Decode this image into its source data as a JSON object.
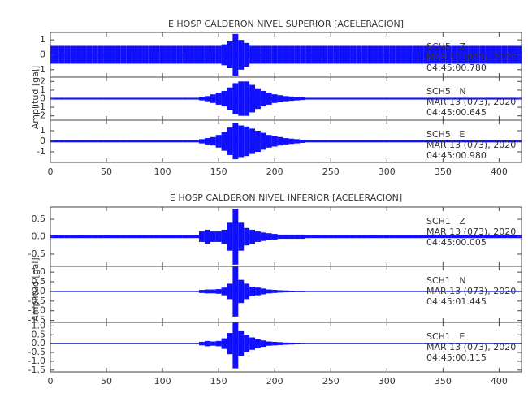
{
  "chart_data": [
    {
      "type": "seismogram",
      "title": "E HOSP CALDERON NIVEL SUPERIOR [ACELERACION]",
      "ylabel": "Amplitud [gal]",
      "color": "#1010ff",
      "xlim": [
        0,
        420
      ],
      "xticks": [
        0,
        50,
        100,
        150,
        200,
        250,
        300,
        350,
        400
      ],
      "x": [
        0,
        5,
        10,
        15,
        20,
        25,
        30,
        35,
        40,
        45,
        50,
        55,
        60,
        65,
        70,
        75,
        80,
        85,
        90,
        95,
        100,
        105,
        110,
        115,
        120,
        125,
        130,
        135,
        140,
        145,
        150,
        155,
        160,
        165,
        170,
        175,
        180,
        185,
        190,
        195,
        200,
        205,
        210,
        215,
        220,
        225,
        230,
        235,
        240,
        245,
        250,
        255,
        260,
        265,
        270,
        275,
        280,
        285,
        290,
        295,
        300,
        305,
        310,
        315,
        320,
        325,
        330,
        335,
        340,
        345,
        350,
        355,
        360,
        365,
        370,
        375,
        380,
        385,
        390,
        395,
        400,
        405,
        410,
        415,
        420
      ],
      "traces": [
        {
          "station": "SCH5   Z",
          "date": "MAR 13 (073), 2020",
          "time": "04:45:00.780",
          "ylim": [
            -1.5,
            1.5
          ],
          "yticks": [
            -1,
            0,
            1
          ],
          "values": [
            0.6,
            0.6,
            0.6,
            0.6,
            0.6,
            0.6,
            0.6,
            0.6,
            0.6,
            0.6,
            0.6,
            0.6,
            0.6,
            0.6,
            0.6,
            0.6,
            0.6,
            0.6,
            0.6,
            0.6,
            0.6,
            0.6,
            0.6,
            0.6,
            0.6,
            0.6,
            0.6,
            0.6,
            0.6,
            0.6,
            0.6,
            0.7,
            0.9,
            1.4,
            1.0,
            0.8,
            0.6,
            0.6,
            0.6,
            0.6,
            0.6,
            0.6,
            0.6,
            0.6,
            0.6,
            0.6,
            0.6,
            0.6,
            0.6,
            0.6,
            0.6,
            0.6,
            0.6,
            0.6,
            0.6,
            0.6,
            0.6,
            0.6,
            0.6,
            0.6,
            0.6,
            0.6,
            0.6,
            0.6,
            0.6,
            0.6,
            0.6,
            0.6,
            0.6,
            0.6,
            0.6,
            0.6,
            0.6,
            0.6,
            0.6,
            0.6,
            0.6,
            0.6,
            0.6,
            0.6,
            0.6,
            0.6,
            0.6,
            0.6,
            0.6
          ]
        },
        {
          "station": "SCH5   N",
          "date": "MAR 13 (073), 2020",
          "time": "04:45:00.645",
          "ylim": [
            -2.5,
            2.5
          ],
          "yticks": [
            -2,
            -1,
            0,
            1,
            2
          ],
          "values": [
            0.1,
            0.1,
            0.1,
            0.1,
            0.1,
            0.1,
            0.1,
            0.1,
            0.1,
            0.1,
            0.1,
            0.1,
            0.1,
            0.1,
            0.1,
            0.1,
            0.1,
            0.1,
            0.1,
            0.1,
            0.1,
            0.1,
            0.1,
            0.1,
            0.1,
            0.1,
            0.1,
            0.2,
            0.3,
            0.5,
            0.7,
            0.9,
            1.3,
            1.8,
            2.0,
            2.0,
            1.6,
            1.2,
            0.9,
            0.7,
            0.5,
            0.4,
            0.3,
            0.25,
            0.2,
            0.15,
            0.1,
            0.1,
            0.1,
            0.1,
            0.1,
            0.1,
            0.1,
            0.1,
            0.1,
            0.1,
            0.1,
            0.1,
            0.1,
            0.1,
            0.1,
            0.1,
            0.1,
            0.1,
            0.1,
            0.1,
            0.1,
            0.1,
            0.1,
            0.1,
            0.1,
            0.1,
            0.1,
            0.1,
            0.1,
            0.1,
            0.1,
            0.1,
            0.1,
            0.1,
            0.1,
            0.1,
            0.1,
            0.1,
            0.1
          ]
        },
        {
          "station": "SCH5   E",
          "date": "MAR 13 (073), 2020",
          "time": "04:45:00.980",
          "ylim": [
            -2,
            2
          ],
          "yticks": [
            -1,
            0,
            1
          ],
          "values": [
            0.1,
            0.1,
            0.1,
            0.1,
            0.1,
            0.1,
            0.1,
            0.1,
            0.1,
            0.1,
            0.1,
            0.1,
            0.1,
            0.1,
            0.1,
            0.1,
            0.1,
            0.1,
            0.1,
            0.1,
            0.1,
            0.1,
            0.1,
            0.1,
            0.1,
            0.1,
            0.1,
            0.2,
            0.3,
            0.4,
            0.6,
            0.9,
            1.3,
            1.7,
            1.5,
            1.4,
            1.2,
            1.0,
            0.8,
            0.6,
            0.5,
            0.4,
            0.3,
            0.25,
            0.2,
            0.15,
            0.1,
            0.1,
            0.1,
            0.1,
            0.1,
            0.1,
            0.1,
            0.1,
            0.1,
            0.1,
            0.1,
            0.1,
            0.1,
            0.1,
            0.1,
            0.1,
            0.1,
            0.1,
            0.1,
            0.1,
            0.1,
            0.1,
            0.1,
            0.1,
            0.1,
            0.1,
            0.1,
            0.1,
            0.1,
            0.1,
            0.1,
            0.1,
            0.1,
            0.1,
            0.1,
            0.1,
            0.1,
            0.1,
            0.1
          ]
        }
      ]
    },
    {
      "type": "seismogram",
      "title": "E HOSP CALDERON NIVEL INFERIOR [ACELERACION]",
      "ylabel": "Amplitud [gal]",
      "color": "#1010ff",
      "xlim": [
        0,
        420
      ],
      "xticks": [
        0,
        50,
        100,
        150,
        200,
        250,
        300,
        350,
        400
      ],
      "x": [
        0,
        5,
        10,
        15,
        20,
        25,
        30,
        35,
        40,
        45,
        50,
        55,
        60,
        65,
        70,
        75,
        80,
        85,
        90,
        95,
        100,
        105,
        110,
        115,
        120,
        125,
        130,
        135,
        140,
        145,
        150,
        155,
        160,
        165,
        170,
        175,
        180,
        185,
        190,
        195,
        200,
        205,
        210,
        215,
        220,
        225,
        230,
        235,
        240,
        245,
        250,
        255,
        260,
        265,
        270,
        275,
        280,
        285,
        290,
        295,
        300,
        305,
        310,
        315,
        320,
        325,
        330,
        335,
        340,
        345,
        350,
        355,
        360,
        365,
        370,
        375,
        380,
        385,
        390,
        395,
        400,
        405,
        410,
        415,
        420
      ],
      "traces": [
        {
          "station": "SCH1   Z",
          "date": "MAR 13 (073), 2020",
          "time": "04:45:00.005",
          "ylim": [
            -0.85,
            0.85
          ],
          "yticks": [
            -0.5,
            {
              "value": 0,
              "label": "0.0"
            },
            0.5
          ],
          "values": [
            0.04,
            0.04,
            0.04,
            0.04,
            0.04,
            0.04,
            0.04,
            0.04,
            0.04,
            0.04,
            0.04,
            0.04,
            0.04,
            0.04,
            0.04,
            0.04,
            0.04,
            0.04,
            0.04,
            0.04,
            0.04,
            0.04,
            0.04,
            0.04,
            0.04,
            0.04,
            0.04,
            0.15,
            0.2,
            0.15,
            0.15,
            0.2,
            0.4,
            0.8,
            0.4,
            0.25,
            0.2,
            0.15,
            0.12,
            0.1,
            0.08,
            0.06,
            0.06,
            0.06,
            0.06,
            0.06,
            0.04,
            0.04,
            0.04,
            0.04,
            0.04,
            0.04,
            0.04,
            0.04,
            0.04,
            0.04,
            0.04,
            0.04,
            0.04,
            0.04,
            0.04,
            0.04,
            0.04,
            0.04,
            0.04,
            0.04,
            0.04,
            0.04,
            0.04,
            0.04,
            0.04,
            0.04,
            0.04,
            0.04,
            0.04,
            0.04,
            0.04,
            0.04,
            0.04,
            0.04,
            0.04,
            0.04,
            0.04,
            0.04,
            0.04
          ]
        },
        {
          "station": "SCH1   N",
          "date": "MAR 13 (073), 2020",
          "time": "04:45:01.445",
          "ylim": [
            -1.6,
            1.3
          ],
          "yticks": [
            -1.5,
            {
              "value": -1,
              "label": "-1.0"
            },
            -0.5,
            {
              "value": 0,
              "label": "0.0"
            },
            0.5,
            {
              "value": 1,
              "label": "1.0"
            }
          ],
          "values": [
            0.02,
            0.02,
            0.02,
            0.02,
            0.02,
            0.02,
            0.02,
            0.02,
            0.02,
            0.02,
            0.02,
            0.02,
            0.02,
            0.02,
            0.02,
            0.02,
            0.02,
            0.02,
            0.02,
            0.02,
            0.02,
            0.02,
            0.02,
            0.02,
            0.02,
            0.02,
            0.02,
            0.08,
            0.1,
            0.1,
            0.12,
            0.2,
            0.4,
            1.3,
            0.6,
            0.4,
            0.25,
            0.2,
            0.15,
            0.1,
            0.08,
            0.06,
            0.05,
            0.04,
            0.03,
            0.03,
            0.02,
            0.02,
            0.02,
            0.02,
            0.02,
            0.02,
            0.02,
            0.02,
            0.02,
            0.02,
            0.02,
            0.02,
            0.02,
            0.02,
            0.02,
            0.02,
            0.02,
            0.02,
            0.02,
            0.02,
            0.02,
            0.02,
            0.02,
            0.02,
            0.02,
            0.02,
            0.02,
            0.02,
            0.02,
            0.02,
            0.02,
            0.02,
            0.02,
            0.02,
            0.02,
            0.02,
            0.02,
            0.02,
            0.02
          ]
        },
        {
          "station": "SCH1   E",
          "date": "MAR 13 (073), 2020",
          "time": "04:45:00.115",
          "ylim": [
            -1.6,
            1.2
          ],
          "yticks": [
            -1.5,
            {
              "value": -1,
              "label": "-1.0"
            },
            -0.5,
            {
              "value": 0,
              "label": "0.0"
            },
            0.5,
            {
              "value": 1,
              "label": "1.0"
            }
          ],
          "values": [
            0.02,
            0.02,
            0.02,
            0.02,
            0.02,
            0.02,
            0.02,
            0.02,
            0.02,
            0.02,
            0.02,
            0.02,
            0.02,
            0.02,
            0.02,
            0.02,
            0.02,
            0.02,
            0.02,
            0.02,
            0.02,
            0.02,
            0.02,
            0.02,
            0.02,
            0.02,
            0.02,
            0.1,
            0.15,
            0.12,
            0.15,
            0.3,
            0.6,
            1.4,
            0.7,
            0.5,
            0.35,
            0.25,
            0.18,
            0.12,
            0.1,
            0.08,
            0.06,
            0.05,
            0.04,
            0.03,
            0.02,
            0.02,
            0.02,
            0.02,
            0.02,
            0.02,
            0.02,
            0.02,
            0.02,
            0.02,
            0.02,
            0.02,
            0.02,
            0.02,
            0.02,
            0.02,
            0.02,
            0.02,
            0.02,
            0.02,
            0.02,
            0.02,
            0.02,
            0.02,
            0.02,
            0.02,
            0.02,
            0.02,
            0.02,
            0.02,
            0.02,
            0.02,
            0.02,
            0.02,
            0.02,
            0.02,
            0.02,
            0.02,
            0.02
          ]
        }
      ]
    }
  ]
}
